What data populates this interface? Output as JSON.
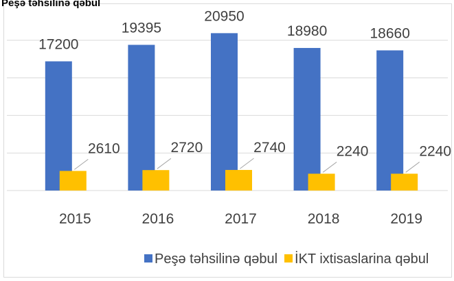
{
  "chart_data": {
    "type": "bar",
    "title": "Peşə təhsilinə qəbul",
    "categories": [
      "2015",
      "2016",
      "2017",
      "2018",
      "2019"
    ],
    "series": [
      {
        "name": "Peşə təhsilinə qəbul",
        "color": "#4472c4",
        "values": [
          17200,
          19395,
          20950,
          18980,
          18660
        ]
      },
      {
        "name": "İKT ixtisaslarina qəbul",
        "color": "#ffc000",
        "values": [
          2610,
          2720,
          2740,
          2240,
          2240
        ]
      }
    ],
    "ylim": [
      0,
      25000
    ],
    "yticks": [
      0,
      5000,
      10000,
      15000,
      20000
    ],
    "grid": true,
    "legend": "bottom"
  }
}
